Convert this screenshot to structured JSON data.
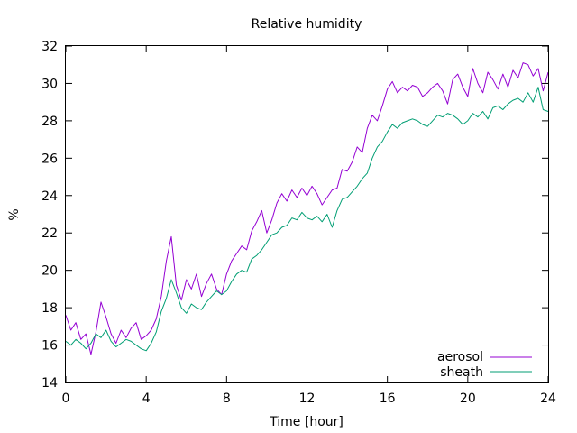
{
  "chart_data": {
    "type": "line",
    "title": "Relative humidity",
    "xlabel": "Time [hour]",
    "ylabel": "%",
    "xlim": [
      0,
      24
    ],
    "ylim": [
      14,
      32
    ],
    "xticks": [
      0,
      4,
      8,
      12,
      16,
      20,
      24
    ],
    "yticks": [
      14,
      16,
      18,
      20,
      22,
      24,
      26,
      28,
      30,
      32
    ],
    "grid": false,
    "legend_position": "bottom-right",
    "series": [
      {
        "name": "aerosol",
        "color": "#9400d3",
        "x": [
          0,
          0.25,
          0.5,
          0.75,
          1,
          1.25,
          1.5,
          1.75,
          2,
          2.25,
          2.5,
          2.75,
          3,
          3.25,
          3.5,
          3.75,
          4,
          4.25,
          4.5,
          4.75,
          5,
          5.25,
          5.5,
          5.75,
          6,
          6.25,
          6.5,
          6.75,
          7,
          7.25,
          7.5,
          7.75,
          8,
          8.25,
          8.5,
          8.75,
          9,
          9.25,
          9.5,
          9.75,
          10,
          10.25,
          10.5,
          10.75,
          11,
          11.25,
          11.5,
          11.75,
          12,
          12.25,
          12.5,
          12.75,
          13,
          13.25,
          13.5,
          13.75,
          14,
          14.25,
          14.5,
          14.75,
          15,
          15.25,
          15.5,
          15.75,
          16,
          16.25,
          16.5,
          16.75,
          17,
          17.25,
          17.5,
          17.75,
          18,
          18.25,
          18.5,
          18.75,
          19,
          19.25,
          19.5,
          19.75,
          20,
          20.25,
          20.5,
          20.75,
          21,
          21.25,
          21.5,
          21.75,
          22,
          22.25,
          22.5,
          22.75,
          23,
          23.25,
          23.5,
          23.75,
          24
        ],
        "values": [
          17.6,
          16.8,
          17.2,
          16.3,
          16.6,
          15.5,
          16.7,
          18.3,
          17.5,
          16.6,
          16.1,
          16.8,
          16.4,
          16.9,
          17.2,
          16.3,
          16.5,
          16.8,
          17.4,
          18.6,
          20.5,
          21.8,
          19.2,
          18.4,
          19.5,
          19.0,
          19.8,
          18.6,
          19.3,
          19.8,
          19.0,
          18.7,
          19.8,
          20.5,
          20.9,
          21.3,
          21.1,
          22.1,
          22.6,
          23.2,
          22.0,
          22.7,
          23.6,
          24.1,
          23.7,
          24.3,
          23.9,
          24.4,
          24.0,
          24.5,
          24.1,
          23.5,
          23.9,
          24.3,
          24.4,
          25.4,
          25.3,
          25.8,
          26.6,
          26.3,
          27.6,
          28.3,
          28.0,
          28.8,
          29.7,
          30.1,
          29.5,
          29.8,
          29.6,
          29.9,
          29.8,
          29.3,
          29.5,
          29.8,
          30.0,
          29.6,
          28.9,
          30.2,
          30.5,
          29.8,
          29.3,
          30.8,
          30.0,
          29.5,
          30.6,
          30.2,
          29.7,
          30.5,
          29.8,
          30.7,
          30.3,
          31.1,
          31.0,
          30.4,
          30.8,
          29.6,
          30.6
        ]
      },
      {
        "name": "sheath",
        "color": "#009e73",
        "x": [
          0,
          0.25,
          0.5,
          0.75,
          1,
          1.25,
          1.5,
          1.75,
          2,
          2.25,
          2.5,
          2.75,
          3,
          3.25,
          3.5,
          3.75,
          4,
          4.25,
          4.5,
          4.75,
          5,
          5.25,
          5.5,
          5.75,
          6,
          6.25,
          6.5,
          6.75,
          7,
          7.25,
          7.5,
          7.75,
          8,
          8.25,
          8.5,
          8.75,
          9,
          9.25,
          9.5,
          9.75,
          10,
          10.25,
          10.5,
          10.75,
          11,
          11.25,
          11.5,
          11.75,
          12,
          12.25,
          12.5,
          12.75,
          13,
          13.25,
          13.5,
          13.75,
          14,
          14.25,
          14.5,
          14.75,
          15,
          15.25,
          15.5,
          15.75,
          16,
          16.25,
          16.5,
          16.75,
          17,
          17.25,
          17.5,
          17.75,
          18,
          18.25,
          18.5,
          18.75,
          19,
          19.25,
          19.5,
          19.75,
          20,
          20.25,
          20.5,
          20.75,
          21,
          21.25,
          21.5,
          21.75,
          22,
          22.25,
          22.5,
          22.75,
          23,
          23.25,
          23.5,
          23.75,
          24
        ],
        "values": [
          16.2,
          16.0,
          16.3,
          16.1,
          15.8,
          16.1,
          16.6,
          16.4,
          16.8,
          16.2,
          15.9,
          16.1,
          16.3,
          16.2,
          16.0,
          15.8,
          15.7,
          16.1,
          16.7,
          17.8,
          18.5,
          19.5,
          18.8,
          18.0,
          17.7,
          18.2,
          18.0,
          17.9,
          18.3,
          18.6,
          18.9,
          18.7,
          18.9,
          19.4,
          19.8,
          20.0,
          19.9,
          20.6,
          20.8,
          21.1,
          21.5,
          21.9,
          22.0,
          22.3,
          22.4,
          22.8,
          22.7,
          23.1,
          22.8,
          22.7,
          22.9,
          22.6,
          23.0,
          22.3,
          23.2,
          23.8,
          23.9,
          24.2,
          24.5,
          24.9,
          25.2,
          26.0,
          26.6,
          26.9,
          27.4,
          27.8,
          27.6,
          27.9,
          28.0,
          28.1,
          28.0,
          27.8,
          27.7,
          28.0,
          28.3,
          28.2,
          28.4,
          28.3,
          28.1,
          27.8,
          28.0,
          28.4,
          28.2,
          28.5,
          28.1,
          28.7,
          28.8,
          28.6,
          28.9,
          29.1,
          29.2,
          29.0,
          29.5,
          29.0,
          29.8,
          28.6,
          28.5
        ]
      }
    ]
  }
}
